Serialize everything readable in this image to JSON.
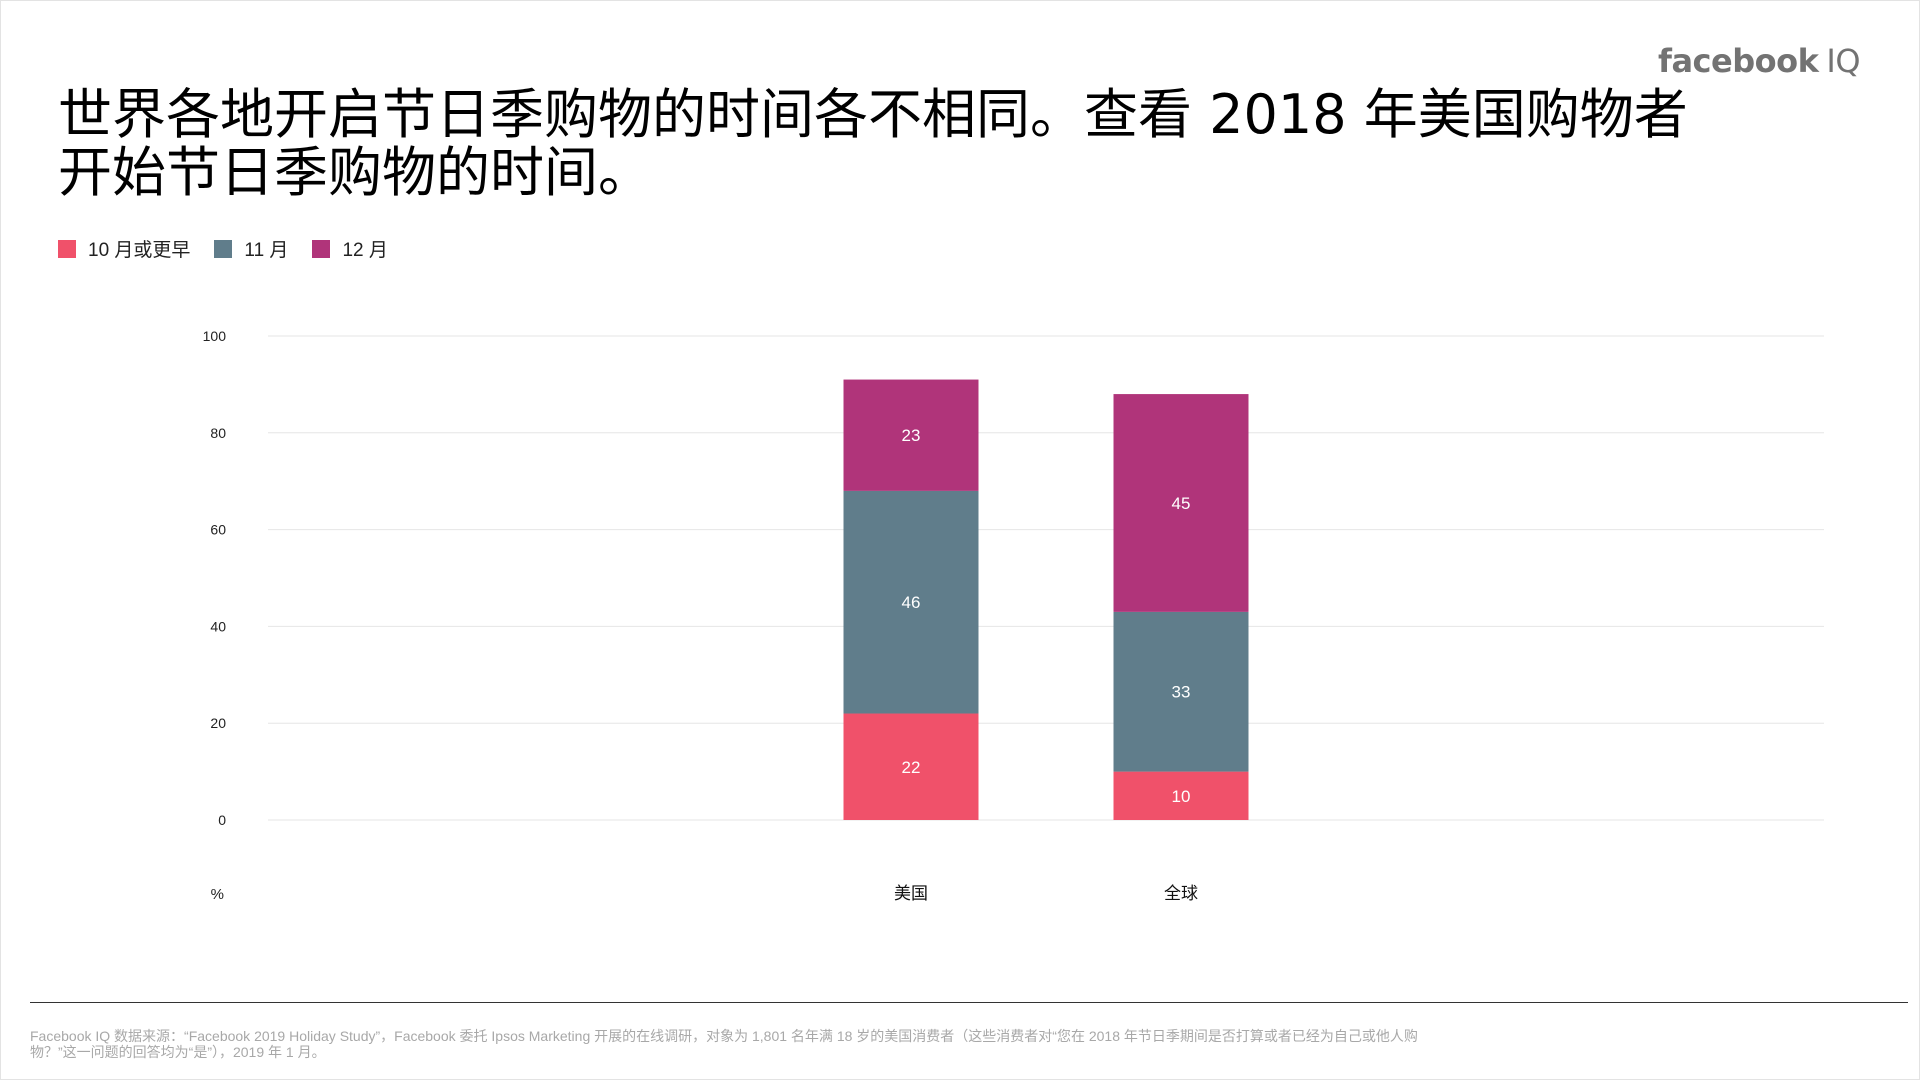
{
  "brand": {
    "wordmark": "facebook",
    "suffix": "IQ"
  },
  "title": "世界各地开启节日季购物的时间各不相同。查看 2018 年美国购物者开始节日季购物的时间。",
  "legend": [
    {
      "label": "10 月或更早",
      "color": "#F0516A"
    },
    {
      "label": "11 月",
      "color": "#607D8B"
    },
    {
      "label": "12 月",
      "color": "#B0347A"
    }
  ],
  "chart_data": {
    "type": "bar",
    "stacked": true,
    "categories": [
      "美国",
      "全球"
    ],
    "series": [
      {
        "name": "10 月或更早",
        "values": [
          22,
          10
        ],
        "color": "#F0516A"
      },
      {
        "name": "11 月",
        "values": [
          46,
          33
        ],
        "color": "#607D8B"
      },
      {
        "name": "12 月",
        "values": [
          23,
          45
        ],
        "color": "#B0347A"
      }
    ],
    "ylim": [
      0,
      100
    ],
    "yticks": [
      0,
      20,
      40,
      60,
      80,
      100
    ],
    "ylabel": "%",
    "xlabel": "",
    "grid": true,
    "legend_position": "top-left"
  },
  "footnote": "Facebook IQ 数据来源：“Facebook 2019 Holiday Study”，Facebook 委托 Ipsos Marketing 开展的在线调研，对象为 1,801 名年满 18 岁的美国消费者（这些消费者对“您在 2018 年节日季期间是否打算或者已经为自己或他人购物？”这一问题的回答均为“是”），2019 年 1 月。"
}
